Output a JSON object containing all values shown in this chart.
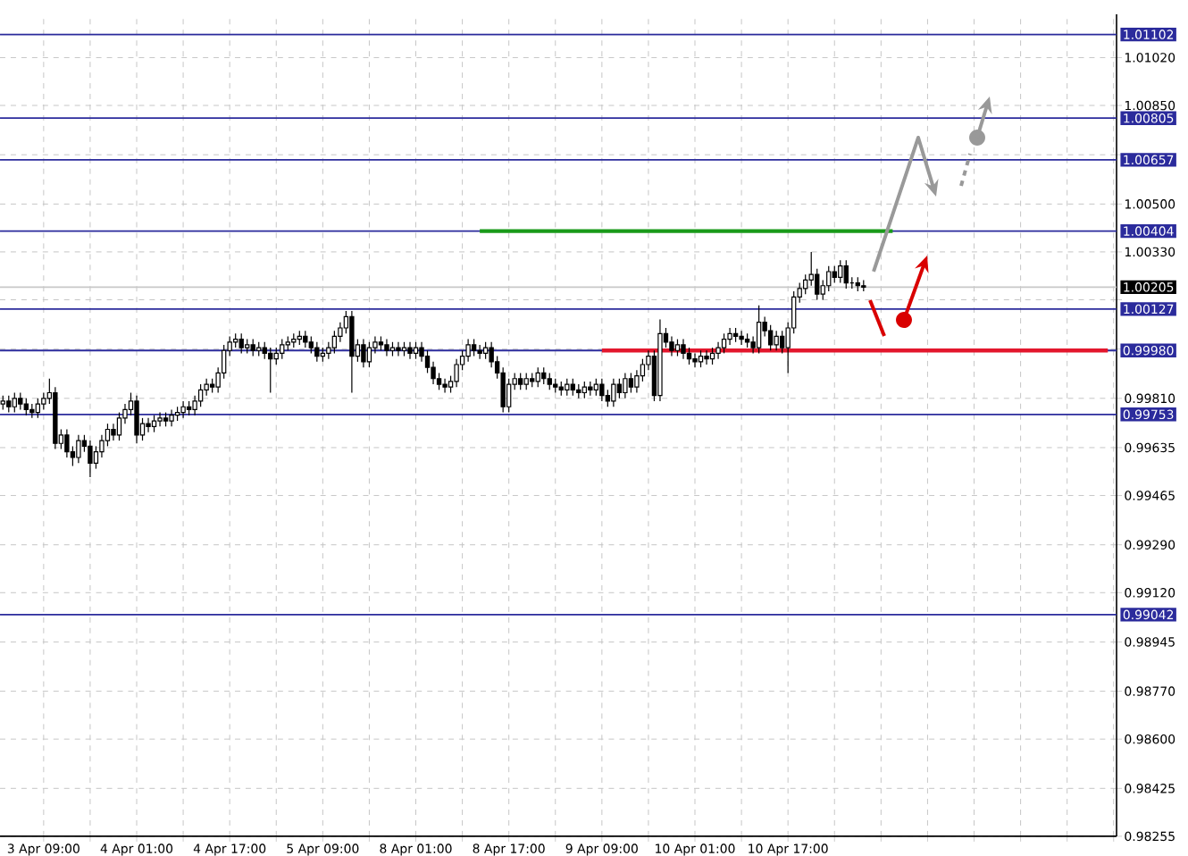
{
  "chart_data": {
    "type": "candlestick",
    "grid": true,
    "categories": [
      null,
      null,
      null,
      null,
      null,
      null,
      null,
      "3 Apr 09:00",
      null,
      null,
      null,
      null,
      null,
      null,
      null,
      null,
      null,
      null,
      null,
      null,
      null,
      null,
      null,
      "4 Apr 01:00",
      null,
      null,
      null,
      null,
      null,
      null,
      null,
      null,
      null,
      null,
      null,
      null,
      null,
      null,
      null,
      "4 Apr 17:00",
      null,
      null,
      null,
      null,
      null,
      null,
      null,
      null,
      null,
      null,
      null,
      null,
      null,
      null,
      null,
      "5 Apr 09:00",
      null,
      null,
      null,
      null,
      null,
      null,
      null,
      null,
      null,
      null,
      null,
      null,
      null,
      null,
      null,
      "8 Apr 01:00",
      null,
      null,
      null,
      null,
      null,
      null,
      null,
      null,
      null,
      null,
      null,
      null,
      null,
      null,
      null,
      "8 Apr 17:00",
      null,
      null,
      null,
      null,
      null,
      null,
      null,
      null,
      null,
      null,
      null,
      null,
      null,
      null,
      null,
      "9 Apr 09:00",
      null,
      null,
      null,
      null,
      null,
      null,
      null,
      null,
      null,
      null,
      null,
      null,
      null,
      null,
      null,
      "10 Apr 01:00",
      null,
      null,
      null,
      null,
      null,
      null,
      null,
      null,
      null,
      null,
      null,
      null,
      null,
      null,
      null,
      "10 Apr 17:00",
      null,
      null,
      null,
      null,
      null,
      null,
      null,
      null,
      null,
      null,
      null,
      null,
      null,
      null,
      null,
      null,
      null,
      null,
      null,
      null,
      null,
      null,
      null,
      null,
      null,
      null,
      null,
      null,
      null,
      null,
      null,
      null,
      null,
      null,
      null,
      null,
      null,
      null,
      null,
      null,
      null,
      null,
      null,
      null,
      null,
      null,
      null,
      null,
      null,
      null,
      null,
      null,
      null,
      null,
      null,
      null
    ],
    "ohlc": [
      [
        0.9979,
        0.9982,
        0.9977,
        0.998
      ],
      [
        0.998,
        0.9982,
        0.9976,
        0.9978
      ],
      [
        0.9978,
        0.9983,
        0.9976,
        0.9981
      ],
      [
        0.9981,
        0.9983,
        0.9977,
        0.9979
      ],
      [
        0.9979,
        0.9981,
        0.9975,
        0.9977
      ],
      [
        0.9977,
        0.9979,
        0.9974,
        0.9976
      ],
      [
        0.9976,
        0.9981,
        0.9974,
        0.9979
      ],
      [
        0.9979,
        0.9983,
        0.9977,
        0.9981
      ],
      [
        0.9981,
        0.9988,
        0.9979,
        0.9983
      ],
      [
        0.9983,
        0.9985,
        0.9963,
        0.9965
      ],
      [
        0.9965,
        0.997,
        0.9963,
        0.9968
      ],
      [
        0.9968,
        0.997,
        0.996,
        0.9962
      ],
      [
        0.9962,
        0.9964,
        0.9957,
        0.996
      ],
      [
        0.996,
        0.9968,
        0.9958,
        0.9966
      ],
      [
        0.9966,
        0.9968,
        0.9962,
        0.9964
      ],
      [
        0.9964,
        0.9966,
        0.9953,
        0.9958
      ],
      [
        0.9958,
        0.9964,
        0.9956,
        0.9962
      ],
      [
        0.9962,
        0.9968,
        0.996,
        0.9966
      ],
      [
        0.9966,
        0.9972,
        0.9964,
        0.997
      ],
      [
        0.997,
        0.9972,
        0.9966,
        0.9968
      ],
      [
        0.9968,
        0.9976,
        0.9966,
        0.9974
      ],
      [
        0.9974,
        0.9979,
        0.9972,
        0.9977
      ],
      [
        0.9977,
        0.9983,
        0.9975,
        0.998
      ],
      [
        0.998,
        0.9982,
        0.9965,
        0.9968
      ],
      [
        0.9968,
        0.9974,
        0.9966,
        0.9972
      ],
      [
        0.9972,
        0.9974,
        0.9969,
        0.9971
      ],
      [
        0.9971,
        0.9975,
        0.9969,
        0.9973
      ],
      [
        0.9973,
        0.9976,
        0.9971,
        0.9974
      ],
      [
        0.9974,
        0.9976,
        0.9971,
        0.9973
      ],
      [
        0.9973,
        0.9977,
        0.9971,
        0.9975
      ],
      [
        0.9975,
        0.9978,
        0.9973,
        0.9976
      ],
      [
        0.9976,
        0.998,
        0.9974,
        0.9978
      ],
      [
        0.9978,
        0.998,
        0.9975,
        0.9977
      ],
      [
        0.9977,
        0.9982,
        0.9975,
        0.998
      ],
      [
        0.998,
        0.9986,
        0.9978,
        0.9984
      ],
      [
        0.9984,
        0.9988,
        0.9982,
        0.9986
      ],
      [
        0.9986,
        0.9988,
        0.9983,
        0.9985
      ],
      [
        0.9985,
        0.9992,
        0.9983,
        0.999
      ],
      [
        0.999,
        1.0,
        0.9988,
        0.9998
      ],
      [
        0.9998,
        1.0003,
        0.9996,
        1.0001
      ],
      [
        1.0001,
        1.0004,
        0.9999,
        1.0002
      ],
      [
        1.0002,
        1.0004,
        0.9997,
        0.9999
      ],
      [
        0.9999,
        1.0002,
        0.9997,
        1.0
      ],
      [
        1.0,
        1.0002,
        0.9996,
        0.9998
      ],
      [
        0.9998,
        1.0001,
        0.9996,
        0.9999
      ],
      [
        0.9999,
        1.0001,
        0.9995,
        0.9997
      ],
      [
        0.9997,
        0.9999,
        0.9983,
        0.9995
      ],
      [
        0.9995,
        0.9999,
        0.9993,
        0.9997
      ],
      [
        0.9997,
        1.0002,
        0.9995,
        1.0
      ],
      [
        1.0,
        1.0003,
        0.9998,
        1.0001
      ],
      [
        1.0001,
        1.0004,
        0.9999,
        1.0002
      ],
      [
        1.0002,
        1.0005,
        1.0,
        1.0003
      ],
      [
        1.0003,
        1.0005,
        0.9999,
        1.0001
      ],
      [
        1.0001,
        1.0003,
        0.9997,
        0.9999
      ],
      [
        0.9999,
        1.0001,
        0.9994,
        0.9996
      ],
      [
        0.9996,
        0.9999,
        0.9994,
        0.9997
      ],
      [
        0.9997,
        1.0001,
        0.9995,
        0.9999
      ],
      [
        0.9999,
        1.0005,
        0.9997,
        1.0003
      ],
      [
        1.0003,
        1.0008,
        1.0001,
        1.0006
      ],
      [
        1.0006,
        1.0012,
        1.0004,
        1.001
      ],
      [
        1.001,
        1.0012,
        0.9983,
        0.9996
      ],
      [
        0.9996,
        1.0002,
        0.9994,
        1.0
      ],
      [
        1.0,
        1.0002,
        0.9992,
        0.9994
      ],
      [
        0.9994,
        1.0001,
        0.9992,
        0.9999
      ],
      [
        0.9999,
        1.0003,
        0.9997,
        1.0001
      ],
      [
        1.0001,
        1.0003,
        0.9998,
        1.0
      ],
      [
        1.0,
        1.0002,
        0.9996,
        0.9998
      ],
      [
        0.9998,
        1.0001,
        0.9996,
        0.9999
      ],
      [
        0.9999,
        1.0001,
        0.9996,
        0.9998
      ],
      [
        0.9998,
        1.0001,
        0.9996,
        0.9999
      ],
      [
        0.9999,
        1.0001,
        0.9995,
        0.9997
      ],
      [
        0.9997,
        1.0001,
        0.9995,
        0.9999
      ],
      [
        0.9999,
        1.0001,
        0.9994,
        0.9996
      ],
      [
        0.9996,
        0.9998,
        0.999,
        0.9992
      ],
      [
        0.9992,
        0.9994,
        0.9986,
        0.9988
      ],
      [
        0.9988,
        0.999,
        0.9984,
        0.9986
      ],
      [
        0.9986,
        0.9988,
        0.9983,
        0.9985
      ],
      [
        0.9985,
        0.9989,
        0.9983,
        0.9987
      ],
      [
        0.9987,
        0.9995,
        0.9985,
        0.9993
      ],
      [
        0.9993,
        0.9998,
        0.9991,
        0.9996
      ],
      [
        0.9996,
        1.0002,
        0.9994,
        1.0
      ],
      [
        1.0,
        1.0002,
        0.9996,
        0.9998
      ],
      [
        0.9998,
        1.0,
        0.9995,
        0.9997
      ],
      [
        0.9997,
        1.0001,
        0.9995,
        0.9999
      ],
      [
        0.9999,
        1.0001,
        0.9992,
        0.9994
      ],
      [
        0.9994,
        0.9996,
        0.9988,
        0.999
      ],
      [
        0.999,
        0.9992,
        0.9976,
        0.9978
      ],
      [
        0.9978,
        0.9988,
        0.9976,
        0.9986
      ],
      [
        0.9986,
        0.999,
        0.9984,
        0.9988
      ],
      [
        0.9988,
        0.999,
        0.9984,
        0.9986
      ],
      [
        0.9986,
        0.999,
        0.9984,
        0.9988
      ],
      [
        0.9988,
        0.999,
        0.9985,
        0.9987
      ],
      [
        0.9987,
        0.9992,
        0.9985,
        0.999
      ],
      [
        0.999,
        0.9992,
        0.9986,
        0.9988
      ],
      [
        0.9988,
        0.999,
        0.9984,
        0.9986
      ],
      [
        0.9986,
        0.9988,
        0.9983,
        0.9985
      ],
      [
        0.9985,
        0.9987,
        0.9982,
        0.9984
      ],
      [
        0.9984,
        0.9988,
        0.9982,
        0.9986
      ],
      [
        0.9986,
        0.9988,
        0.9982,
        0.9984
      ],
      [
        0.9984,
        0.9986,
        0.9981,
        0.9983
      ],
      [
        0.9983,
        0.9987,
        0.9981,
        0.9985
      ],
      [
        0.9985,
        0.9987,
        0.9982,
        0.9984
      ],
      [
        0.9984,
        0.9988,
        0.9982,
        0.9986
      ],
      [
        0.9986,
        0.9988,
        0.998,
        0.9982
      ],
      [
        0.9982,
        0.9984,
        0.9978,
        0.998
      ],
      [
        0.998,
        0.9988,
        0.9978,
        0.9986
      ],
      [
        0.9986,
        0.9988,
        0.9981,
        0.9983
      ],
      [
        0.9983,
        0.999,
        0.9981,
        0.9988
      ],
      [
        0.9988,
        0.999,
        0.9983,
        0.9985
      ],
      [
        0.9985,
        0.9991,
        0.9983,
        0.9989
      ],
      [
        0.9989,
        0.9995,
        0.9987,
        0.9993
      ],
      [
        0.9993,
        0.9998,
        0.9991,
        0.9996
      ],
      [
        0.9996,
        0.9998,
        0.998,
        0.9982
      ],
      [
        0.9982,
        1.0009,
        0.998,
        1.0004
      ],
      [
        1.0004,
        1.0006,
        0.9999,
        1.0001
      ],
      [
        1.0001,
        1.0003,
        0.9996,
        0.9998
      ],
      [
        0.9998,
        1.0002,
        0.9996,
        1.0
      ],
      [
        1.0,
        1.0002,
        0.9995,
        0.9997
      ],
      [
        0.9997,
        0.9999,
        0.9993,
        0.9995
      ],
      [
        0.9995,
        0.9997,
        0.9992,
        0.9994
      ],
      [
        0.9994,
        0.9998,
        0.9992,
        0.9996
      ],
      [
        0.9996,
        0.9998,
        0.9993,
        0.9995
      ],
      [
        0.9995,
        0.9999,
        0.9993,
        0.9997
      ],
      [
        0.9997,
        1.0001,
        0.9995,
        0.9999
      ],
      [
        0.9999,
        1.0004,
        0.9997,
        1.0002
      ],
      [
        1.0002,
        1.0006,
        1.0,
        1.0004
      ],
      [
        1.0004,
        1.0006,
        1.0001,
        1.0003
      ],
      [
        1.0003,
        1.0005,
        1.0,
        1.0002
      ],
      [
        1.0002,
        1.0004,
        0.9999,
        1.0001
      ],
      [
        1.0001,
        1.0003,
        0.9997,
        0.9999
      ],
      [
        0.9999,
        1.0014,
        0.9997,
        1.0008
      ],
      [
        1.0008,
        1.001,
        1.0003,
        1.0005
      ],
      [
        1.0005,
        1.0007,
        0.9998,
        1.0
      ],
      [
        1.0,
        1.0005,
        0.9998,
        1.0003
      ],
      [
        1.0003,
        1.0005,
        0.9997,
        0.9999
      ],
      [
        0.9999,
        1.0008,
        0.999,
        1.0006
      ],
      [
        1.0006,
        1.0019,
        1.0004,
        1.0017
      ],
      [
        1.0017,
        1.0022,
        1.0015,
        1.002
      ],
      [
        1.002,
        1.0025,
        1.0018,
        1.0023
      ],
      [
        1.0023,
        1.0033,
        1.0021,
        1.0025
      ],
      [
        1.0025,
        1.0027,
        1.0016,
        1.0018
      ],
      [
        1.0018,
        1.0023,
        1.0016,
        1.0021
      ],
      [
        1.0021,
        1.0028,
        1.0019,
        1.0026
      ],
      [
        1.0026,
        1.0028,
        1.0022,
        1.0024
      ],
      [
        1.0024,
        1.003,
        1.0022,
        1.0028
      ],
      [
        1.0028,
        1.003,
        1.002,
        1.0022
      ],
      [
        1.0022,
        1.0024,
        1.002,
        1.0022
      ],
      [
        1.0022,
        1.0024,
        1.0019,
        1.0021
      ],
      [
        1.0021,
        1.0023,
        1.0019,
        1.00205
      ],
      null,
      null,
      null,
      null,
      null,
      null,
      null,
      null,
      null,
      null,
      null,
      null,
      null,
      null,
      null,
      null,
      null,
      null,
      null,
      null,
      null,
      null,
      null,
      null,
      null,
      null,
      null,
      null,
      null,
      null,
      null,
      null,
      null,
      null,
      null,
      null,
      null,
      null,
      null,
      null,
      null,
      null,
      null
    ],
    "series": [
      {
        "type": "line",
        "color": "#1a9a1a",
        "values": [
          null,
          null,
          null,
          null,
          null,
          null,
          null,
          null,
          null,
          null,
          null,
          null,
          null,
          null,
          null,
          null,
          null,
          null,
          null,
          null,
          null,
          null,
          null,
          null,
          null,
          null,
          null,
          null,
          null,
          null,
          null,
          null,
          null,
          null,
          null,
          null,
          null,
          null,
          null,
          null,
          null,
          null,
          null,
          null,
          null,
          null,
          null,
          null,
          null,
          null,
          null,
          null,
          null,
          null,
          null,
          null,
          null,
          null,
          null,
          null,
          null,
          null,
          null,
          null,
          null,
          null,
          null,
          null,
          null,
          null,
          null,
          null,
          null,
          null,
          null,
          null,
          null,
          null,
          null,
          null,
          null,
          null,
          1.00404,
          1.00404,
          1.00404,
          1.00404,
          1.00404,
          1.00404,
          1.00404,
          1.00404,
          1.00404,
          1.00404,
          1.00404,
          1.00404,
          1.00404,
          1.00404,
          1.00404,
          1.00404,
          1.00404,
          1.00404,
          1.00404,
          1.00404,
          1.00404,
          1.00404,
          1.00404,
          1.00404,
          1.00404,
          1.00404,
          1.00404,
          1.00404,
          1.00404,
          1.00404,
          1.00404,
          1.00404,
          1.00404,
          1.00404,
          1.00404,
          1.00404,
          1.00404,
          1.00404,
          1.00404,
          1.00404,
          1.00404,
          1.00404,
          1.00404,
          1.00404,
          1.00404,
          1.00404,
          1.00404,
          1.00404,
          1.00404,
          1.00404,
          1.00404,
          1.00404,
          1.00404,
          1.00404,
          1.00404,
          1.00404,
          1.00404,
          1.00404,
          1.00404,
          1.00404,
          1.00404,
          1.00404,
          1.00404,
          1.00404,
          1.00404,
          1.00404,
          1.00404,
          1.00404,
          1.00404,
          1.00404,
          1.00404,
          1.00404,
          null,
          null,
          null,
          null,
          null,
          null,
          null,
          null,
          null,
          null,
          null,
          null,
          null,
          null,
          null,
          null,
          null,
          null,
          null,
          null,
          null,
          null,
          null,
          null,
          null,
          null,
          null,
          null,
          null,
          null,
          null,
          null,
          null,
          null,
          null,
          null,
          null,
          null
        ]
      },
      {
        "type": "line",
        "color": "#e3172d",
        "values": [
          null,
          null,
          null,
          null,
          null,
          null,
          null,
          null,
          null,
          null,
          null,
          null,
          null,
          null,
          null,
          null,
          null,
          null,
          null,
          null,
          null,
          null,
          null,
          null,
          null,
          null,
          null,
          null,
          null,
          null,
          null,
          null,
          null,
          null,
          null,
          null,
          null,
          null,
          null,
          null,
          null,
          null,
          null,
          null,
          null,
          null,
          null,
          null,
          null,
          null,
          null,
          null,
          null,
          null,
          null,
          null,
          null,
          null,
          null,
          null,
          null,
          null,
          null,
          null,
          null,
          null,
          null,
          null,
          null,
          null,
          null,
          null,
          null,
          null,
          null,
          null,
          null,
          null,
          null,
          null,
          null,
          null,
          null,
          null,
          null,
          null,
          null,
          null,
          null,
          null,
          null,
          null,
          null,
          null,
          null,
          null,
          null,
          null,
          null,
          null,
          null,
          null,
          null,
          0.9998,
          0.9998,
          0.9998,
          0.9998,
          0.9998,
          0.9998,
          0.9998,
          0.9998,
          0.9998,
          0.9998,
          0.9998,
          0.9998,
          0.9998,
          0.9998,
          0.9998,
          0.9998,
          0.9998,
          0.9998,
          0.9998,
          0.9998,
          0.9998,
          0.9998,
          0.9998,
          0.9998,
          0.9998,
          0.9998,
          0.9998,
          0.9998,
          0.9998,
          0.9998,
          0.9998,
          0.9998,
          0.9998,
          0.9998,
          0.9998,
          0.9998,
          0.9998,
          0.9998,
          0.9998,
          0.9998,
          0.9998,
          0.9998,
          0.9998,
          0.9998,
          0.9998,
          0.9998,
          0.9998,
          0.9998,
          0.9998,
          0.9998,
          0.9998,
          0.9998,
          0.9998,
          0.9998,
          0.9998,
          0.9998,
          0.9998,
          0.9998,
          0.9998,
          0.9998,
          0.9998,
          0.9998,
          0.9998,
          0.9998,
          0.9998,
          0.9998,
          0.9998,
          0.9998,
          0.9998,
          0.9998,
          0.9998,
          0.9998,
          0.9998,
          0.9998,
          0.9998,
          0.9998,
          0.9998,
          0.9998,
          0.9998,
          0.9998,
          0.9998,
          0.9998,
          0.9998,
          0.9998,
          0.9998,
          0.9998,
          0.9998,
          0.9998,
          null
        ]
      }
    ],
    "ylim": [
      0.98255,
      1.01174
    ],
    "yticks": [
      0.98255,
      {
        "value": 0.98425,
        "label": "0.98425"
      },
      {
        "value": 0.986,
        "label": "0.98600"
      },
      {
        "value": 0.9877,
        "label": "0.98770"
      },
      0.98945,
      {
        "value": 0.9912,
        "label": "0.99120"
      },
      {
        "value": 0.9929,
        "label": "0.99290"
      },
      0.99465,
      0.99635,
      {
        "value": 0.9981,
        "label": "0.99810"
      },
      {
        "value": 0.99985,
        "label": null
      },
      {
        "value": 1.0016,
        "label": null
      },
      {
        "value": 1.0033,
        "label": "1.00330"
      },
      {
        "value": 1.005,
        "label": "1.00500"
      },
      {
        "value": 1.00675,
        "label": null
      },
      {
        "value": 1.0085,
        "label": "1.00850"
      },
      {
        "value": 1.0102,
        "label": "1.01020"
      }
    ],
    "ref_lines": [
      {
        "axis": "y",
        "value": 1.01102,
        "label": "1.01102",
        "color": "#2b2b9c"
      },
      {
        "axis": "y",
        "value": 1.00805,
        "label": "1.00805",
        "color": "#2b2b9c"
      },
      {
        "axis": "y",
        "value": 1.00657,
        "label": "1.00657",
        "color": "#2b2b9c"
      },
      {
        "axis": "y",
        "value": 1.00404,
        "label": "1.00404",
        "color": "#2b2b9c"
      },
      {
        "axis": "y",
        "value": 1.00205,
        "label": "1.00205",
        "color": "#c8c8c8"
      },
      {
        "axis": "y",
        "value": 1.00127,
        "label": "1.00127",
        "color": "#2b2b9c"
      },
      {
        "axis": "y",
        "value": 0.9998,
        "label": "0.99980",
        "color": "#2b2b9c"
      },
      {
        "axis": "y",
        "value": 0.99753,
        "label": "0.99753",
        "color": "#2b2b9c"
      },
      {
        "axis": "y",
        "value": 0.99042,
        "label": "0.99042",
        "color": "#2b2b9c"
      }
    ]
  }
}
